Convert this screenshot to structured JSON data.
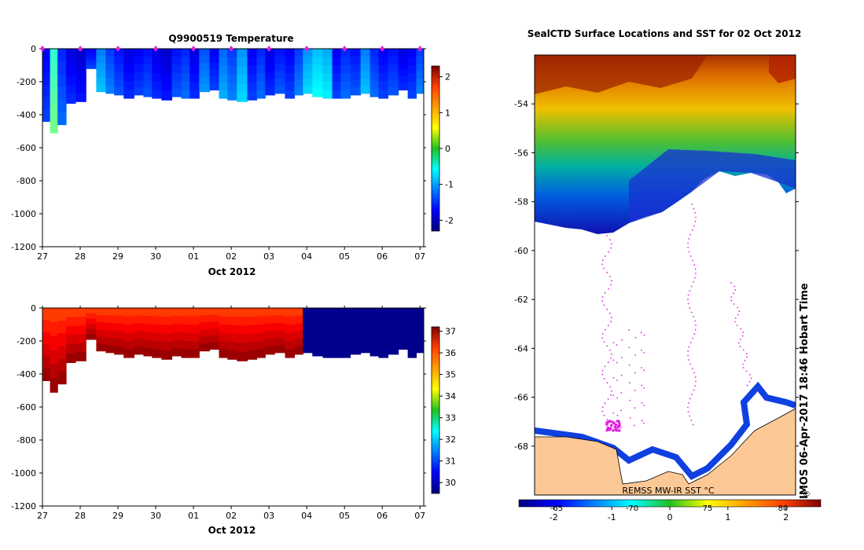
{
  "chart_data": [
    {
      "id": "temperature",
      "type": "heatmap",
      "title": "Q9900519  Temperature",
      "xlabel": "Oct 2012",
      "ylabel": "",
      "x_tick_labels": [
        "27",
        "28",
        "29",
        "30",
        "01",
        "02",
        "03",
        "04",
        "05",
        "06",
        "07"
      ],
      "x_range_days": [
        0,
        10.1
      ],
      "ylim": [
        -1200,
        0
      ],
      "y_ticks": [
        0,
        -200,
        -400,
        -600,
        -800,
        -1000,
        -1200
      ],
      "colorbar": {
        "min": -2.3,
        "max": 2.3,
        "ticks": [
          2,
          1,
          0,
          -1,
          -2
        ],
        "colormap": "jet"
      },
      "profile_days": [
        0.1,
        0.3,
        0.5,
        0.75,
        1.0,
        1.3,
        1.55,
        1.8,
        2.0,
        2.3,
        2.55,
        2.8,
        3.0,
        3.3,
        3.55,
        3.8,
        4.0,
        4.3,
        4.55,
        4.8,
        5.0,
        5.3,
        5.55,
        5.8,
        6.0,
        6.3,
        6.55,
        6.8,
        7.0,
        7.3,
        7.55,
        7.8,
        8.0,
        8.3,
        8.55,
        8.8,
        9.0,
        9.3,
        9.55,
        9.8,
        10.0
      ],
      "profile_max_depth": [
        -440,
        -510,
        -460,
        -330,
        -320,
        -120,
        -260,
        -270,
        -280,
        -300,
        -280,
        -290,
        -300,
        -310,
        -290,
        -300,
        -300,
        -260,
        -250,
        -300,
        -310,
        -320,
        -310,
        -300,
        -280,
        -270,
        -300,
        -280,
        -270,
        -290,
        -300,
        -300,
        -300,
        -280,
        -270,
        -290,
        -300,
        -280,
        -250,
        -300,
        -270
      ],
      "profile_values": [
        -1.6,
        -0.2,
        -1.4,
        -1.7,
        -1.8,
        -1.6,
        -1.0,
        -1.3,
        -1.5,
        -1.7,
        -1.6,
        -1.5,
        -1.7,
        -1.8,
        -1.5,
        -1.4,
        -1.7,
        -1.2,
        -1.6,
        -1.1,
        -1.3,
        -0.9,
        -1.6,
        -1.4,
        -1.7,
        -1.5,
        -1.6,
        -1.3,
        -0.9,
        -0.7,
        -0.8,
        -1.6,
        -1.4,
        -1.5,
        -1.0,
        -1.4,
        -1.6,
        -1.5,
        -1.7,
        -1.6,
        -1.3
      ],
      "station_markers_days": [
        0,
        1,
        2,
        3,
        4,
        5,
        6,
        7,
        8,
        9,
        10
      ],
      "marker_color": "#e020e0"
    },
    {
      "id": "salinity",
      "type": "heatmap",
      "title": "",
      "xlabel": "Oct 2012",
      "ylabel": "",
      "x_tick_labels": [
        "27",
        "28",
        "29",
        "30",
        "01",
        "02",
        "03",
        "04",
        "05",
        "06",
        "07"
      ],
      "x_range_days": [
        0,
        10.1
      ],
      "ylim": [
        -1200,
        0
      ],
      "y_ticks": [
        0,
        -200,
        -400,
        -600,
        -800,
        -1000,
        -1200
      ],
      "colorbar": {
        "min": 29.5,
        "max": 37.2,
        "ticks": [
          37,
          36,
          35,
          34,
          33,
          32,
          31,
          30
        ],
        "colormap": "jet"
      },
      "profile_days": [
        0.1,
        0.3,
        0.5,
        0.75,
        1.0,
        1.3,
        1.55,
        1.8,
        2.0,
        2.3,
        2.55,
        2.8,
        3.0,
        3.3,
        3.55,
        3.8,
        4.0,
        4.3,
        4.55,
        4.8,
        5.0,
        5.3,
        5.55,
        5.8,
        6.0,
        6.3,
        6.55,
        6.8,
        7.0,
        7.3,
        7.55,
        7.8,
        8.0,
        8.3,
        8.55,
        8.8,
        9.0,
        9.3,
        9.55,
        9.8,
        10.0
      ],
      "profile_max_depth": [
        -440,
        -510,
        -460,
        -330,
        -320,
        -190,
        -260,
        -270,
        -280,
        -300,
        -280,
        -290,
        -300,
        -310,
        -290,
        -300,
        -300,
        -260,
        -250,
        -300,
        -310,
        -320,
        -310,
        -300,
        -280,
        -270,
        -300,
        -280,
        -270,
        -290,
        -300,
        -300,
        -300,
        -280,
        -270,
        -290,
        -300,
        -280,
        -250,
        -300,
        -270
      ],
      "surface_value": 35.8,
      "deep_value": 37.0,
      "missing_after_day": 7.0,
      "missing_value": 29.6
    },
    {
      "id": "sst-map",
      "type": "heatmap",
      "title": "SealCTD Surface Locations and SST for 02 Oct 2012",
      "lat_ticks": [
        "-54",
        "-56",
        "-58",
        "-60",
        "-62",
        "-64",
        "-66",
        "-68"
      ],
      "lat_range": [
        -70,
        -52
      ],
      "colorbar": {
        "min": -2.6,
        "max": 2.6,
        "labels": [
          "-2",
          "-1",
          "0",
          "1",
          "2"
        ],
        "ghost_labels": [
          "-65",
          "-70",
          "75",
          "80"
        ],
        "colormap": "jet"
      },
      "sst_source_label": "REMSS MW-IR SST °C",
      "land_color": "#fcc896",
      "track_color": "#e020e0"
    }
  ],
  "timestamp": "IMOS 06-Apr-2017 18:46 Hobart Time",
  "copyright": "©"
}
